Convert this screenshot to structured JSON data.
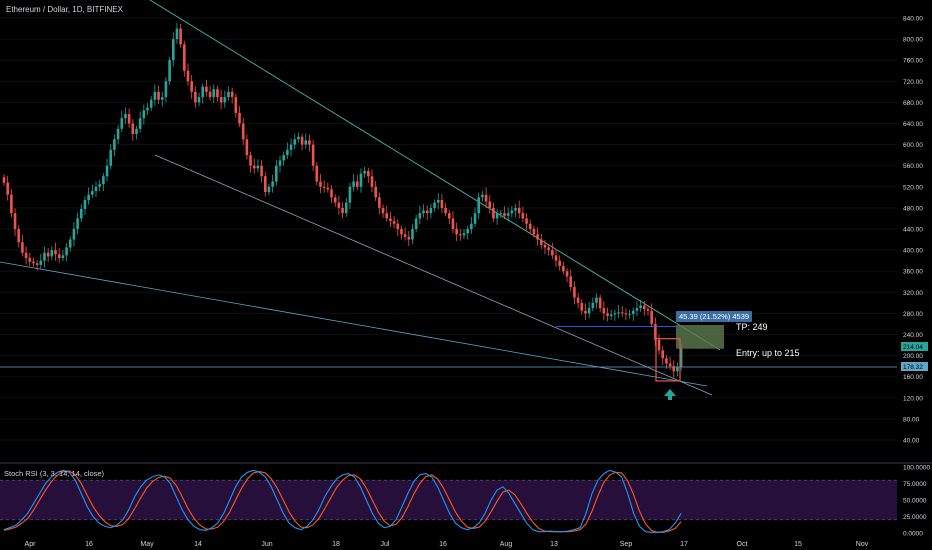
{
  "header": {
    "symbol_title": "Ethereum / Dollar, 1D, BITFINEX"
  },
  "colors": {
    "background": "#000000",
    "up": "#26a69a",
    "down": "#ef5350",
    "trendline": "#4db6ac",
    "support_line": "#5fa8c8",
    "range_line": "#2962ff",
    "target_box": "#5c7a4f",
    "entry_box": "#ef5350",
    "arrow": "#26a69a",
    "axis_text": "#d1d4dc",
    "stoch_k": "#2196f3",
    "stoch_d": "#ff5722",
    "stoch_band": "#2a1140",
    "price_tag_current": "#26a69a",
    "price_tag_line": "#5fa8c8",
    "measure_tag": "#3b6ea5"
  },
  "annotations": {
    "measure_label": "45.39 (21.52%) 4539",
    "tp_label": "TP: 249",
    "entry_label": "Entry: up to 215",
    "current_price_tag": "214.04",
    "line_price_tag": "178.32"
  },
  "stoch": {
    "title": "Stoch RSI (3, 3, 14, 14, close)",
    "ticks": [
      "100.0000",
      "75.0000",
      "50.0000",
      "25.0000",
      "0.0000"
    ]
  },
  "chart_data": [
    {
      "type": "candlestick",
      "title": "Ethereum / Dollar, 1D, BITFINEX",
      "y_ticks": [
        40,
        80,
        120,
        160,
        200,
        240,
        280,
        320,
        360,
        400,
        440,
        480,
        520,
        560,
        600,
        640,
        680,
        720,
        760,
        800,
        840
      ],
      "ylim": [
        0,
        860
      ],
      "x_labels": [
        "Apr",
        "16",
        "May",
        "14",
        "Jun",
        "18",
        "Jul",
        "16",
        "Aug",
        "13",
        "Sep",
        "17",
        "Oct",
        "15",
        "Nov"
      ],
      "closes": [
        528,
        505,
        470,
        440,
        415,
        395,
        385,
        378,
        375,
        372,
        380,
        395,
        388,
        400,
        392,
        385,
        390,
        405,
        420,
        440,
        460,
        478,
        495,
        505,
        512,
        520,
        525,
        540,
        560,
        590,
        610,
        630,
        650,
        658,
        640,
        620,
        630,
        650,
        665,
        670,
        685,
        700,
        685,
        690,
        720,
        760,
        800,
        820,
        790,
        740,
        720,
        700,
        680,
        690,
        710,
        700,
        690,
        705,
        690,
        680,
        690,
        700,
        690,
        660,
        640,
        610,
        580,
        560,
        555,
        560,
        540,
        510,
        520,
        530,
        560,
        570,
        580,
        590,
        600,
        610,
        615,
        600,
        608,
        600,
        560,
        530,
        520,
        518,
        515,
        500,
        490,
        480,
        470,
        490,
        520,
        530,
        520,
        545,
        550,
        540,
        520,
        500,
        480,
        470,
        460,
        455,
        450,
        440,
        430,
        425,
        420,
        440,
        460,
        470,
        475,
        470,
        480,
        490,
        495,
        480,
        470,
        460,
        440,
        430,
        428,
        432,
        440,
        450,
        470,
        500,
        505,
        492,
        480,
        460,
        470,
        470,
        465,
        470,
        475,
        480,
        470,
        460,
        450,
        440,
        430,
        420,
        410,
        405,
        400,
        390,
        380,
        370,
        360,
        350,
        330,
        310,
        300,
        285,
        280,
        290,
        300,
        310,
        290,
        280,
        275,
        278,
        280,
        282,
        280,
        278,
        279,
        285,
        290,
        295,
        288,
        285,
        260,
        230,
        210,
        195,
        185,
        180,
        170,
        178,
        214
      ],
      "stoch_k": [
        5,
        8,
        12,
        20,
        30,
        45,
        60,
        75,
        85,
        92,
        95,
        92,
        80,
        60,
        40,
        25,
        15,
        10,
        8,
        12,
        20,
        35,
        55,
        70,
        80,
        85,
        88,
        85,
        75,
        55,
        35,
        20,
        10,
        5,
        4,
        8,
        15,
        30,
        50,
        70,
        85,
        92,
        95,
        92,
        85,
        70,
        50,
        30,
        15,
        8,
        5,
        10,
        20,
        35,
        55,
        70,
        82,
        88,
        90,
        85,
        70,
        50,
        30,
        15,
        8,
        10,
        20,
        40,
        60,
        78,
        88,
        90,
        85,
        70,
        50,
        30,
        15,
        8,
        5,
        8,
        15,
        30,
        50,
        65,
        70,
        60,
        45,
        30,
        15,
        5,
        2,
        2,
        3,
        2,
        2,
        3,
        5,
        8,
        30,
        60,
        80,
        90,
        95,
        92,
        85,
        60,
        30,
        10,
        2,
        1,
        1,
        2,
        5,
        15,
        30
      ],
      "stoch_d": [
        4,
        6,
        9,
        15,
        22,
        35,
        50,
        65,
        78,
        88,
        93,
        94,
        88,
        75,
        57,
        40,
        27,
        17,
        11,
        10,
        13,
        22,
        37,
        53,
        68,
        78,
        84,
        86,
        83,
        72,
        55,
        37,
        22,
        12,
        6,
        6,
        9,
        18,
        32,
        50,
        68,
        82,
        91,
        93,
        91,
        82,
        68,
        50,
        32,
        18,
        9,
        8,
        12,
        22,
        37,
        53,
        69,
        80,
        87,
        88,
        82,
        68,
        50,
        32,
        18,
        11,
        13,
        23,
        40,
        59,
        75,
        85,
        88,
        82,
        68,
        50,
        32,
        18,
        9,
        7,
        9,
        18,
        32,
        48,
        62,
        65,
        58,
        45,
        30,
        17,
        7,
        3,
        2,
        2,
        2,
        2,
        3,
        5,
        14,
        33,
        57,
        77,
        88,
        92,
        91,
        79,
        58,
        33,
        14,
        4,
        1,
        1,
        3,
        7,
        17
      ]
    }
  ]
}
